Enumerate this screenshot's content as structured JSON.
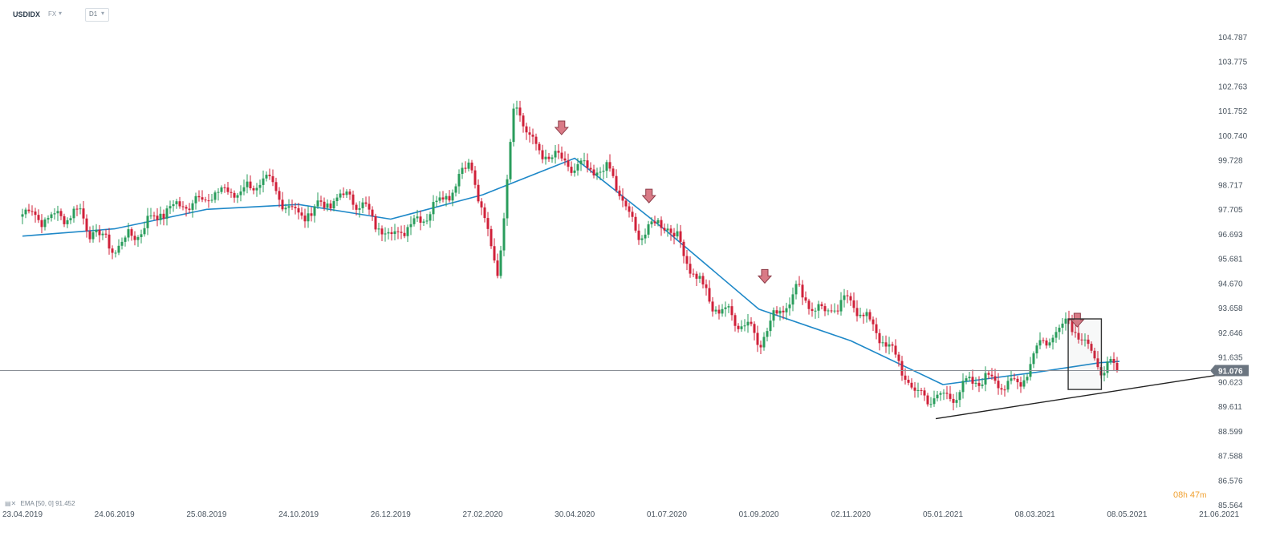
{
  "header": {
    "symbol": "USDIDX",
    "market": "FX",
    "timeframe": "D1"
  },
  "legend": {
    "ema_label": "EMA [50, 0] 91.452"
  },
  "countdown": {
    "hours": "08",
    "hours_unit": "h",
    "minutes": "47",
    "minutes_unit": "m"
  },
  "colors": {
    "up": "#2a9d5c",
    "down": "#d0213a",
    "ema": "#1e88c8",
    "price_line": "#8a8f96",
    "price_tag": "#6b7580",
    "arrow_fill": "#d97a86",
    "arrow_stroke": "#8c3b47",
    "trendline": "#222222"
  },
  "chart_data": {
    "type": "candlestick",
    "title": "",
    "xlabel": "",
    "ylabel": "",
    "ylim": [
      85.564,
      104.787
    ],
    "y_ticks": [
      "104.787",
      "103.775",
      "102.763",
      "101.752",
      "100.740",
      "99.728",
      "98.717",
      "97.705",
      "96.693",
      "95.681",
      "94.670",
      "93.658",
      "92.646",
      "91.635",
      "90.623",
      "89.611",
      "88.599",
      "87.588",
      "86.576",
      "85.564"
    ],
    "x_ticks": [
      "23.04.2019",
      "24.06.2019",
      "25.08.2019",
      "24.10.2019",
      "26.12.2019",
      "27.02.2020",
      "30.04.2020",
      "01.07.2020",
      "01.09.2020",
      "02.11.2020",
      "05.01.2021",
      "08.03.2021",
      "08.05.2021",
      "21.06.2021"
    ],
    "current_price": "91.076",
    "close_path": [
      [
        "23.04.2019",
        97.6
      ],
      [
        "2019-05-10",
        97.3
      ],
      [
        "2019-05-31",
        97.6
      ],
      [
        "2019-06-07",
        96.9
      ],
      [
        "24.06.2019",
        96.1
      ],
      [
        "2019-07-10",
        96.8
      ],
      [
        "2019-07-25",
        97.6
      ],
      [
        "2019-08-05",
        97.8
      ],
      [
        "25.08.2019",
        98.2
      ],
      [
        "2019-09-05",
        98.4
      ],
      [
        "2019-09-20",
        98.5
      ],
      [
        "2019-10-02",
        98.9
      ],
      [
        "24.10.2019",
        97.4
      ],
      [
        "2019-11-10",
        97.9
      ],
      [
        "2019-11-29",
        98.3
      ],
      [
        "2019-12-15",
        97.2
      ],
      [
        "26.12.2019",
        96.6
      ],
      [
        "2020-01-15",
        97.3
      ],
      [
        "2020-02-05",
        98.5
      ],
      [
        "2020-02-19",
        99.7
      ],
      [
        "27.02.2020",
        97.3
      ],
      [
        "2020-03-09",
        95.2
      ],
      [
        "2020-03-20",
        102.3
      ],
      [
        "2020-04-02",
        100.2
      ],
      [
        "30.04.2020",
        99.4
      ],
      [
        "2020-05-25",
        99.2
      ],
      [
        "2020-06-10",
        96.7
      ],
      [
        "01.07.2020",
        97.2
      ],
      [
        "2020-07-31",
        93.8
      ],
      [
        "2020-08-25",
        92.9
      ],
      [
        "01.09.2020",
        92.3
      ],
      [
        "2020-09-25",
        94.4
      ],
      [
        "2020-10-15",
        93.4
      ],
      [
        "02.11.2020",
        94.0
      ],
      [
        "2020-11-30",
        91.9
      ],
      [
        "2020-12-17",
        90.1
      ],
      [
        "05.01.2021",
        89.9
      ],
      [
        "2021-02-01",
        90.8
      ],
      [
        "2021-02-25",
        90.4
      ],
      [
        "08.03.2021",
        91.9
      ],
      [
        "2021-03-31",
        93.2
      ],
      [
        "2021-04-20",
        91.2
      ],
      [
        "2021-05-03",
        91.076
      ]
    ],
    "series": [
      {
        "name": "EMA [50, 0]",
        "type": "line",
        "points": [
          [
            "23.04.2019",
            96.6
          ],
          [
            "24.06.2019",
            96.9
          ],
          [
            "25.08.2019",
            97.7
          ],
          [
            "24.10.2019",
            97.9
          ],
          [
            "26.12.2019",
            97.3
          ],
          [
            "27.02.2020",
            98.3
          ],
          [
            "30.04.2020",
            99.8
          ],
          [
            "01.07.2020",
            96.8
          ],
          [
            "01.09.2020",
            93.6
          ],
          [
            "02.11.2020",
            92.3
          ],
          [
            "05.01.2021",
            90.5
          ],
          [
            "08.03.2021",
            91.0
          ],
          [
            "2021-04-20",
            91.4
          ],
          [
            "2021-05-03",
            91.452
          ]
        ]
      }
    ],
    "trendline": [
      [
        "2020-12-31",
        89.1
      ],
      [
        "21.06.2021",
        90.9
      ]
    ],
    "annotations": [
      {
        "type": "down-arrow",
        "date": "2020-04-21",
        "value": 101.0
      },
      {
        "type": "down-arrow",
        "date": "2020-06-19",
        "value": 98.2
      },
      {
        "type": "down-arrow",
        "date": "2020-09-05",
        "value": 94.9
      },
      {
        "type": "down-arrow",
        "date": "2021-04-05",
        "value": 93.1
      },
      {
        "type": "rectangle",
        "from": [
          "2021-03-30",
          93.2
        ],
        "to": [
          "2021-04-21",
          90.3
        ]
      }
    ]
  }
}
